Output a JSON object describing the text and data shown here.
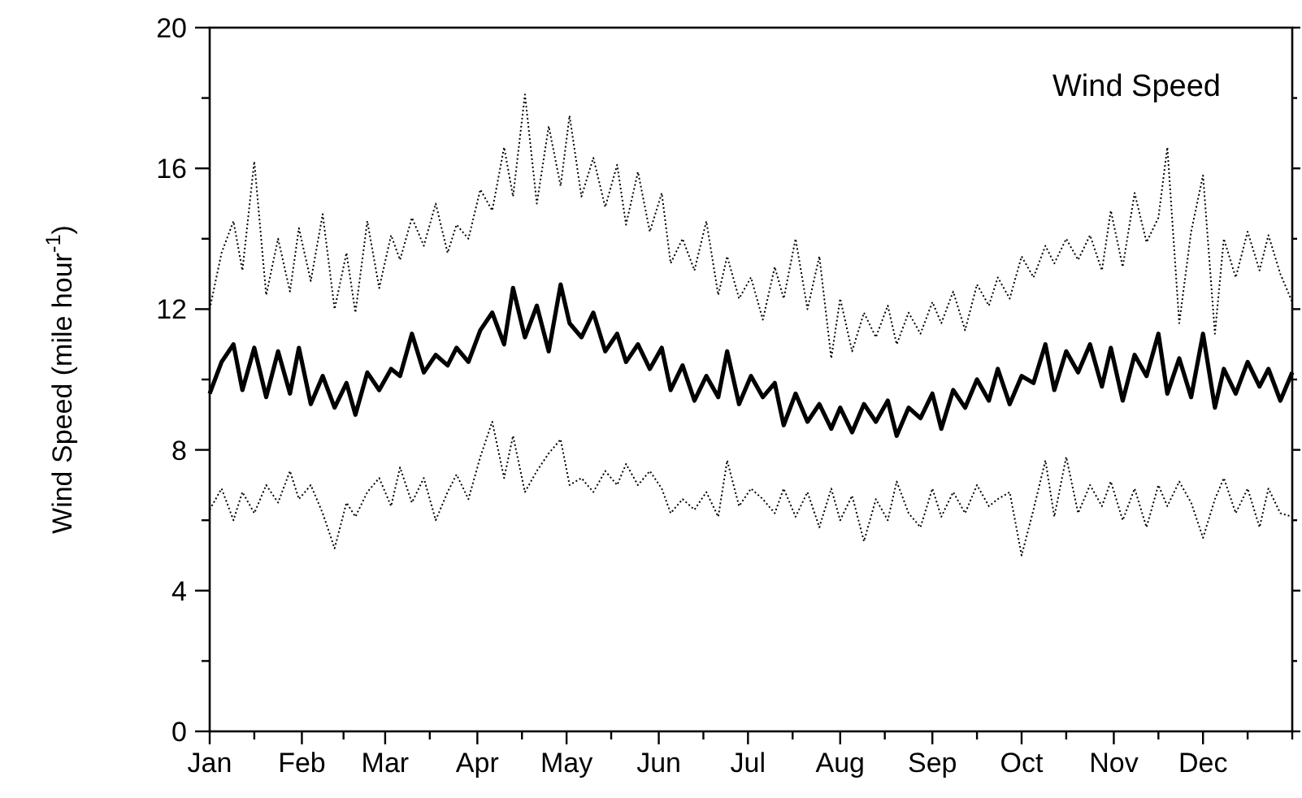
{
  "chart_data": {
    "type": "line",
    "title": "Wind Speed",
    "ylabel": "Wind Speed (mile hour$^{-1}$)",
    "x": [
      "--01-01",
      "--01-05",
      "--01-09",
      "--01-12",
      "--01-16",
      "--01-20",
      "--01-24",
      "--01-28",
      "--01-31",
      "--02-04",
      "--02-08",
      "--02-12",
      "--02-16",
      "--02-19",
      "--02-23",
      "--02-27",
      "--03-03",
      "--03-06",
      "--03-10",
      "--03-14",
      "--03-18",
      "--03-22",
      "--03-25",
      "--03-29",
      "--04-02",
      "--04-06",
      "--04-10",
      "--04-13",
      "--04-17",
      "--04-21",
      "--04-25",
      "--04-29",
      "--05-02",
      "--05-06",
      "--05-10",
      "--05-14",
      "--05-18",
      "--05-21",
      "--05-25",
      "--05-29",
      "--06-02",
      "--06-05",
      "--06-09",
      "--06-13",
      "--06-17",
      "--06-21",
      "--06-24",
      "--06-28",
      "--07-02",
      "--07-06",
      "--07-10",
      "--07-13",
      "--07-17",
      "--07-21",
      "--07-25",
      "--07-29",
      "--08-01",
      "--08-05",
      "--08-09",
      "--08-13",
      "--08-17",
      "--08-20",
      "--08-24",
      "--08-28",
      "--09-01",
      "--09-04",
      "--09-08",
      "--09-12",
      "--09-16",
      "--09-20",
      "--09-23",
      "--09-27",
      "--10-01",
      "--10-05",
      "--10-09",
      "--10-12",
      "--10-16",
      "--10-20",
      "--10-24",
      "--10-28",
      "--10-31",
      "--11-04",
      "--11-08",
      "--11-12",
      "--11-16",
      "--11-19",
      "--11-23",
      "--11-27",
      "--12-01",
      "--12-05",
      "--12-08",
      "--12-12",
      "--12-16",
      "--12-20",
      "--12-23",
      "--12-27",
      "--12-31"
    ],
    "series": [
      {
        "color": "#000000",
        "line_style": "dotted",
        "values": [
          12.0,
          13.6,
          14.5,
          13.1,
          16.2,
          12.4,
          14.0,
          12.5,
          14.3,
          12.8,
          14.7,
          12.0,
          13.6,
          11.9,
          14.5,
          12.6,
          14.1,
          13.4,
          14.6,
          13.8,
          15.0,
          13.6,
          14.4,
          14.0,
          15.4,
          14.8,
          16.6,
          15.2,
          18.1,
          15.0,
          17.2,
          15.5,
          17.5,
          15.2,
          16.3,
          14.9,
          16.1,
          14.4,
          15.9,
          14.2,
          15.3,
          13.3,
          14.0,
          13.1,
          14.5,
          12.4,
          13.5,
          12.3,
          12.9,
          11.7,
          13.2,
          12.3,
          14.0,
          12.0,
          13.5,
          10.6,
          12.3,
          10.8,
          11.9,
          11.2,
          12.1,
          11.0,
          11.9,
          11.3,
          12.2,
          11.6,
          12.5,
          11.4,
          12.7,
          12.1,
          12.9,
          12.3,
          13.5,
          12.9,
          13.8,
          13.3,
          14.0,
          13.4,
          14.1,
          13.1,
          14.8,
          13.2,
          15.3,
          13.9,
          14.6,
          16.6,
          11.6,
          14.2,
          15.8,
          11.3,
          14.0,
          12.9,
          14.2,
          13.1,
          14.1,
          13.0,
          12.2
        ]
      },
      {
        "color": "#000000",
        "line_style": "solid",
        "values": [
          9.6,
          10.5,
          11.0,
          9.7,
          10.9,
          9.5,
          10.8,
          9.6,
          10.9,
          9.3,
          10.1,
          9.2,
          9.9,
          9.0,
          10.2,
          9.7,
          10.3,
          10.1,
          11.3,
          10.2,
          10.7,
          10.4,
          10.9,
          10.5,
          11.4,
          11.9,
          11.0,
          12.6,
          11.2,
          12.1,
          10.8,
          12.7,
          11.6,
          11.2,
          11.9,
          10.8,
          11.3,
          10.5,
          11.0,
          10.3,
          10.9,
          9.7,
          10.4,
          9.4,
          10.1,
          9.5,
          10.8,
          9.3,
          10.1,
          9.5,
          9.9,
          8.7,
          9.6,
          8.8,
          9.3,
          8.6,
          9.2,
          8.5,
          9.3,
          8.8,
          9.4,
          8.4,
          9.2,
          8.9,
          9.6,
          8.6,
          9.7,
          9.2,
          10.0,
          9.4,
          10.3,
          9.3,
          10.1,
          9.9,
          11.0,
          9.7,
          10.8,
          10.2,
          11.0,
          9.8,
          10.9,
          9.4,
          10.7,
          10.1,
          11.3,
          9.6,
          10.6,
          9.5,
          11.3,
          9.2,
          10.3,
          9.6,
          10.5,
          9.8,
          10.3,
          9.4,
          10.2
        ]
      },
      {
        "color": "#000000",
        "line_style": "dotted",
        "values": [
          6.3,
          6.9,
          6.0,
          6.8,
          6.2,
          7.0,
          6.5,
          7.4,
          6.6,
          7.0,
          6.2,
          5.2,
          6.5,
          6.1,
          6.8,
          7.2,
          6.4,
          7.5,
          6.5,
          7.2,
          6.0,
          6.8,
          7.3,
          6.6,
          7.8,
          8.8,
          7.2,
          8.4,
          6.8,
          7.4,
          7.9,
          8.3,
          7.0,
          7.2,
          6.8,
          7.4,
          7.0,
          7.6,
          7.0,
          7.4,
          6.9,
          6.2,
          6.6,
          6.3,
          6.8,
          6.1,
          7.7,
          6.4,
          6.9,
          6.6,
          6.2,
          6.9,
          6.1,
          6.8,
          5.8,
          6.9,
          6.0,
          6.7,
          5.4,
          6.6,
          6.0,
          7.1,
          6.2,
          5.8,
          6.9,
          6.1,
          6.8,
          6.2,
          7.0,
          6.4,
          6.6,
          6.8,
          5.0,
          6.3,
          7.7,
          6.1,
          7.8,
          6.2,
          7.0,
          6.4,
          7.1,
          6.0,
          6.9,
          5.8,
          7.0,
          6.4,
          7.1,
          6.5,
          5.5,
          6.6,
          7.2,
          6.2,
          6.9,
          5.8,
          6.9,
          6.2,
          6.1
        ]
      }
    ],
    "xlim": [
      "--01-01",
      "--12-31"
    ],
    "xticks": [
      {
        "value": "--01-01",
        "label": "Jan"
      },
      {
        "value": "--01-16",
        "label": null
      },
      {
        "value": "--02-01",
        "label": "Feb"
      },
      {
        "value": "--02-15",
        "label": null
      },
      {
        "value": "--03-01",
        "label": "Mar"
      },
      {
        "value": "--03-16",
        "label": null
      },
      {
        "value": "--04-01",
        "label": "Apr"
      },
      {
        "value": "--04-16",
        "label": null
      },
      {
        "value": "--05-01",
        "label": "May"
      },
      {
        "value": "--05-16",
        "label": null
      },
      {
        "value": "--06-01",
        "label": "Jun"
      },
      {
        "value": "--06-16",
        "label": null
      },
      {
        "value": "--07-01",
        "label": "Jul"
      },
      {
        "value": "--07-16",
        "label": null
      },
      {
        "value": "--08-01",
        "label": "Aug"
      },
      {
        "value": "--08-16",
        "label": null
      },
      {
        "value": "--09-01",
        "label": "Sep"
      },
      {
        "value": "--09-16",
        "label": null
      },
      {
        "value": "--10-01",
        "label": "Oct"
      },
      {
        "value": "--10-16",
        "label": null
      },
      {
        "value": "--11-01",
        "label": "Nov"
      },
      {
        "value": "--11-16",
        "label": null
      },
      {
        "value": "--12-01",
        "label": "Dec"
      },
      {
        "value": "--12-16",
        "label": null
      },
      {
        "value": "--12-31",
        "label": null
      }
    ],
    "ylim": [
      0,
      20
    ],
    "yticks": [
      0,
      {
        "value": 2,
        "label": null
      },
      4,
      {
        "value": 6,
        "label": null
      },
      8,
      {
        "value": 10,
        "label": null
      },
      12,
      {
        "value": 14,
        "label": null
      },
      16,
      {
        "value": 18,
        "label": null
      },
      20
    ],
    "grid": false,
    "marker": "none"
  }
}
